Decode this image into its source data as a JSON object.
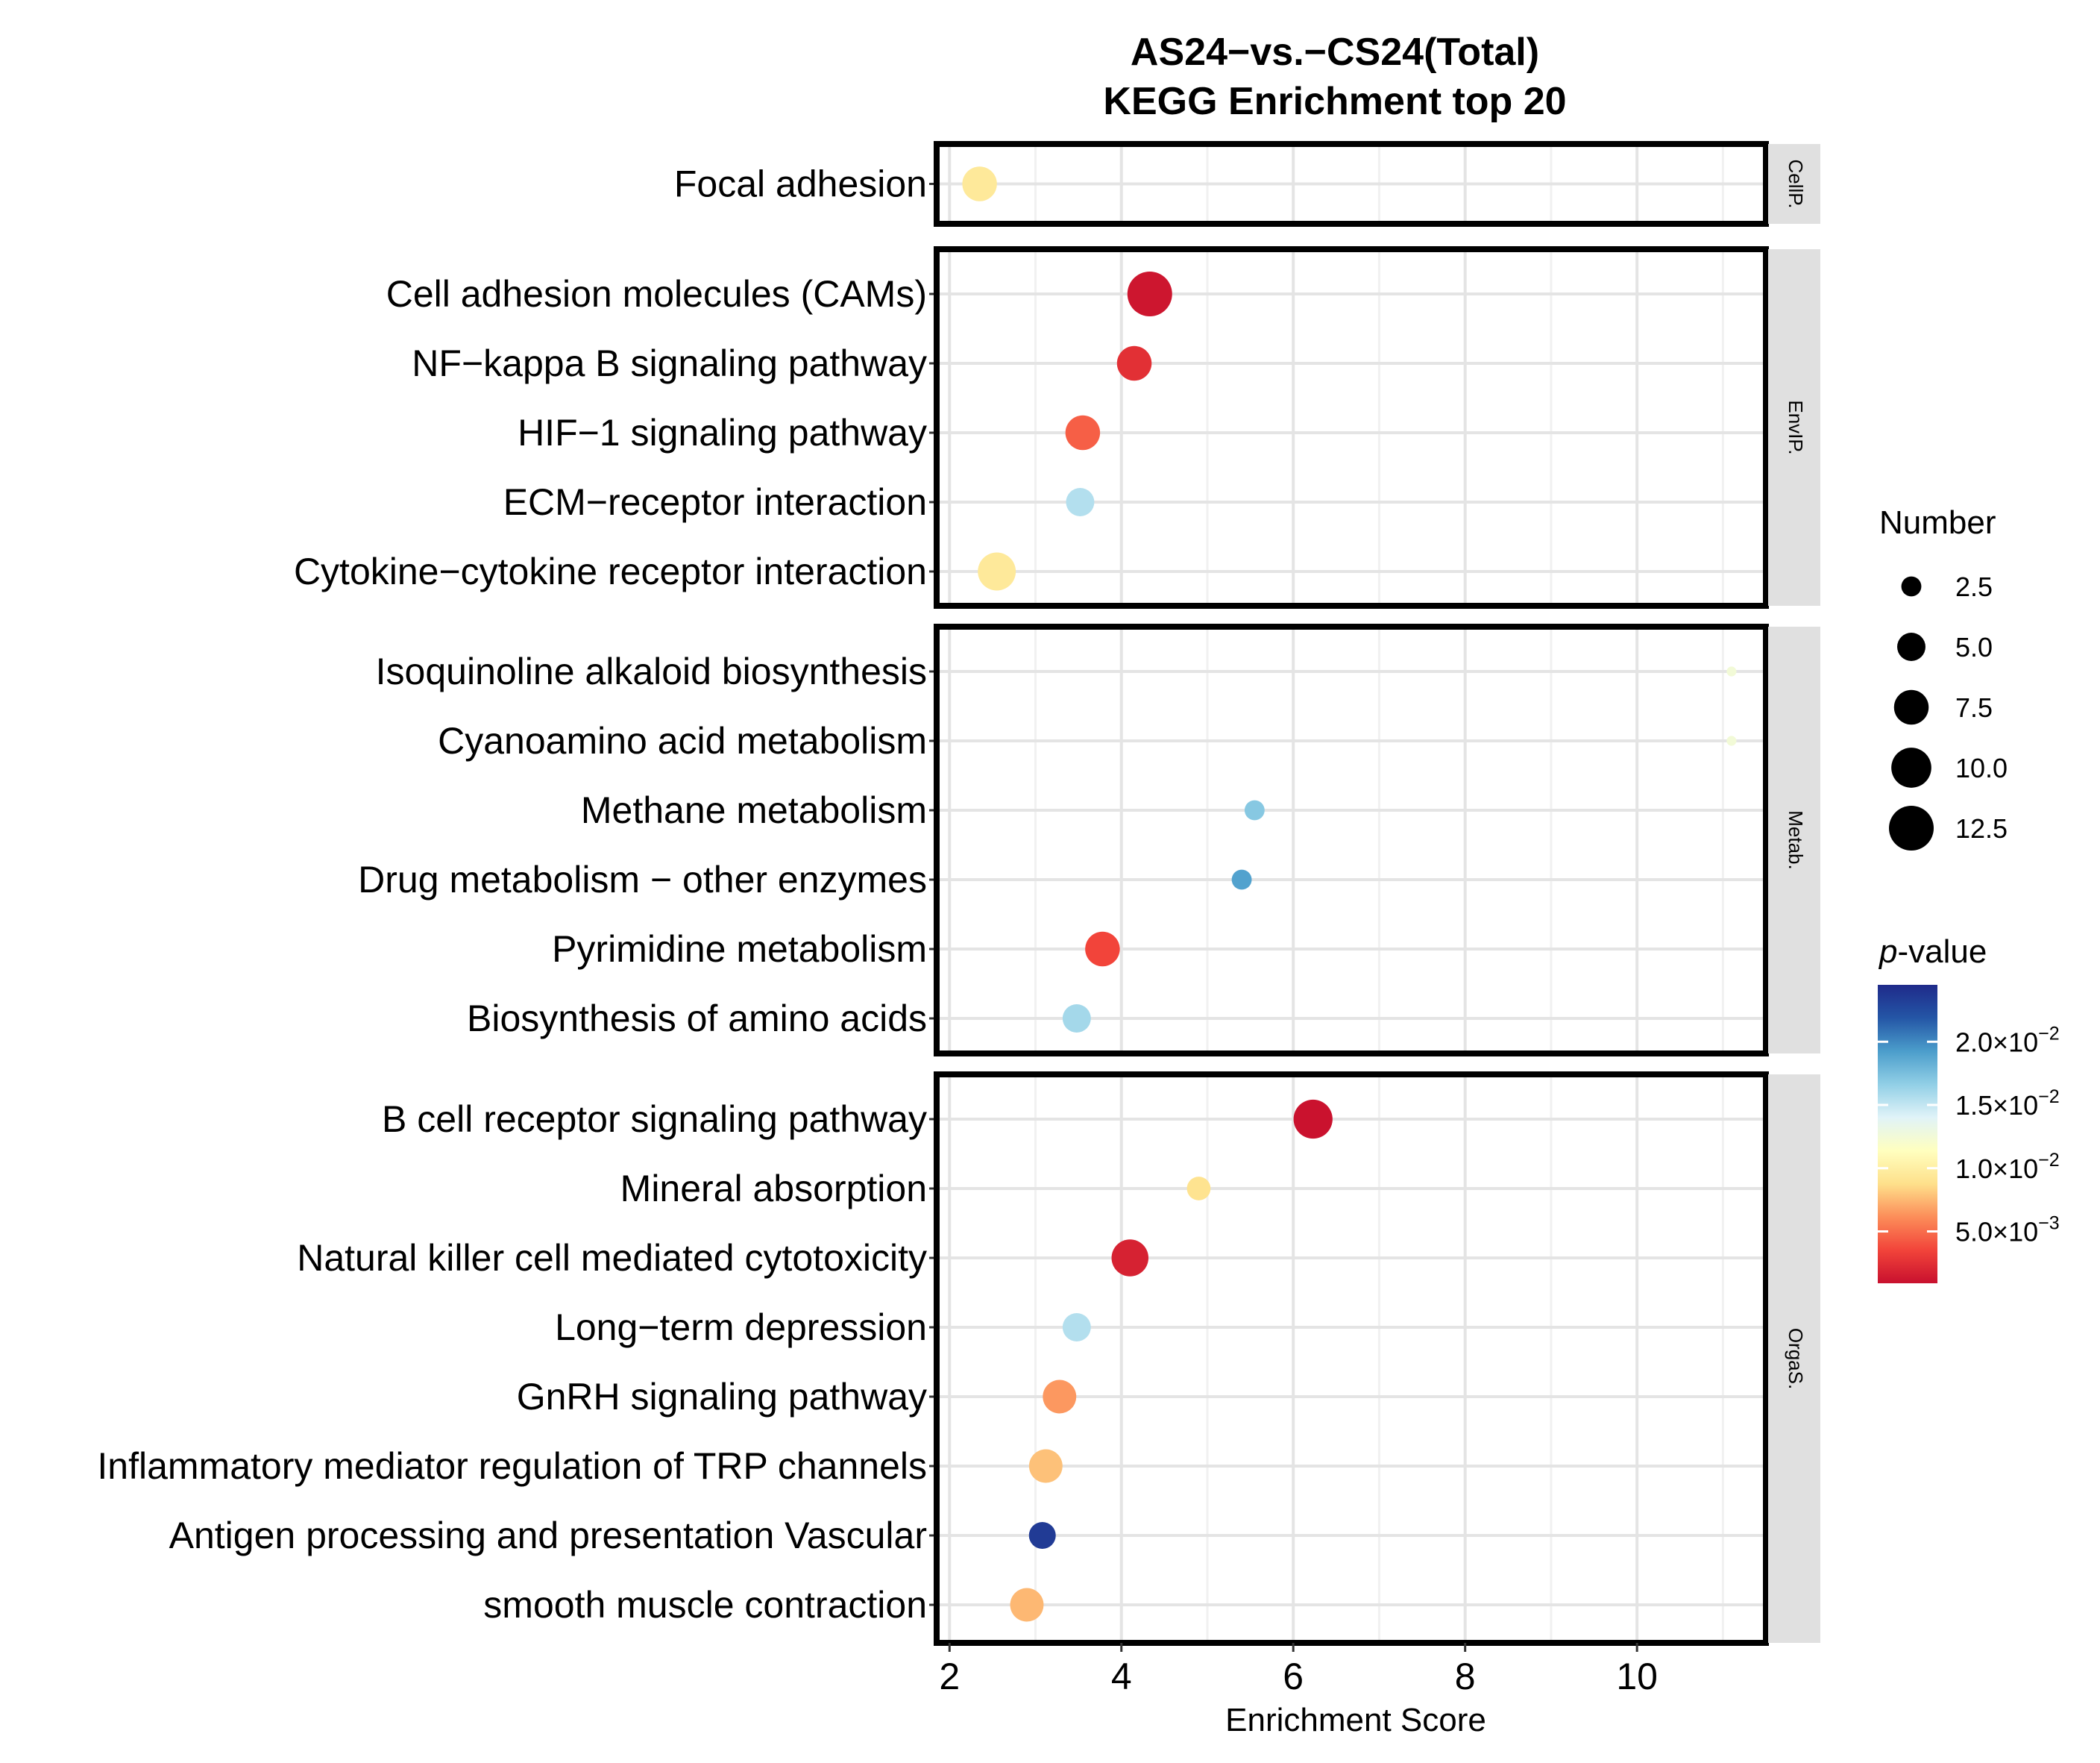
{
  "chart_data": {
    "type": "scatter",
    "title": [
      "AS24−vs.−CS24(Total)",
      "KEGG Enrichment top 20"
    ],
    "xlabel": "Enrichment Score",
    "xlim": [
      1.85,
      11.5
    ],
    "xticks": [
      2,
      4,
      6,
      8,
      10
    ],
    "facets": [
      {
        "name": "CellP.",
        "rows": [
          {
            "label": "Focal adhesion",
            "x": 2.35,
            "number": 7.5,
            "p": 0.0095
          }
        ]
      },
      {
        "name": "EnvIP.",
        "rows": [
          {
            "label": "Cell adhesion molecules (CAMs)",
            "x": 4.33,
            "number": 12.5,
            "p": 0.0012
          },
          {
            "label": "NF−kappa B signaling pathway",
            "x": 4.15,
            "number": 7.5,
            "p": 0.0025
          },
          {
            "label": "HIF−1  signaling pathway",
            "x": 3.55,
            "number": 7.5,
            "p": 0.0045
          },
          {
            "label": "ECM−receptor  interaction",
            "x": 3.52,
            "number": 5.0,
            "p": 0.0155
          },
          {
            "label": "Cytokine−cytokine receptor interaction",
            "x": 2.55,
            "number": 9.0,
            "p": 0.0095
          }
        ]
      },
      {
        "name": "Metab.",
        "rows": [
          {
            "label": "Isoquinoline alkaloid biosynthesis",
            "x": 11.1,
            "number": 0.6,
            "p": 0.0125
          },
          {
            "label": "Cyanoamino acid metabolism",
            "x": 11.1,
            "number": 0.6,
            "p": 0.0125
          },
          {
            "label": "Methane metabolism",
            "x": 5.55,
            "number": 2.5,
            "p": 0.017
          },
          {
            "label": "Drug metabolism −   other enzymes",
            "x": 5.4,
            "number": 2.5,
            "p": 0.019
          },
          {
            "label": "Pyrimidine metabolism",
            "x": 3.78,
            "number": 7.5,
            "p": 0.0035
          },
          {
            "label": "Biosynthesis of amino acids",
            "x": 3.48,
            "number": 5.0,
            "p": 0.016
          }
        ]
      },
      {
        "name": "OrgaS.",
        "rows": [
          {
            "label": "B cell receptor signaling pathway",
            "x": 6.23,
            "number": 9.5,
            "p": 0.001
          },
          {
            "label": "Mineral absorption",
            "x": 4.9,
            "number": 3.5,
            "p": 0.009
          },
          {
            "label": "Natural killer cell mediated cytotoxicity",
            "x": 4.1,
            "number": 8.5,
            "p": 0.0018
          },
          {
            "label": "Long−term  depression",
            "x": 3.48,
            "number": 5.0,
            "p": 0.0155
          },
          {
            "label": "GnRH signaling pathway",
            "x": 3.28,
            "number": 7.0,
            "p": 0.0065
          },
          {
            "label": "Inflammatory mediator regulation of TRP channels",
            "x": 3.12,
            "number": 7.0,
            "p": 0.0078
          },
          {
            "label": "Antigen processing and presentation  Vascular",
            "x": 3.08,
            "number": 4.5,
            "p": 0.0235
          },
          {
            "label": "smooth muscle contraction",
            "x": 2.9,
            "number": 7.0,
            "p": 0.0075
          }
        ]
      }
    ],
    "size_legend": {
      "title": "Number",
      "values": [
        2.5,
        5.0,
        7.5,
        10.0,
        12.5
      ],
      "labels": [
        "2.5",
        "5.0",
        "7.5",
        "10.0",
        "12.5"
      ]
    },
    "color_legend": {
      "title_italic": "p",
      "title_rest": "-value",
      "range": [
        0.0009,
        0.0245
      ],
      "ticks": [
        0.02,
        0.015,
        0.01,
        0.005
      ],
      "tick_labels": [
        {
          "mant": "2.0",
          "exp": "−2"
        },
        {
          "mant": "1.5",
          "exp": "−2"
        },
        {
          "mant": "1.0",
          "exp": "−2"
        },
        {
          "mant": "5.0",
          "exp": "−3"
        }
      ],
      "palette": [
        "#c8102e",
        "#f2443a",
        "#fc8d59",
        "#fee08b",
        "#ffffbf",
        "#e0f3f8",
        "#91cfe6",
        "#4b9dcb",
        "#2456a6",
        "#1f2a8a"
      ]
    }
  }
}
